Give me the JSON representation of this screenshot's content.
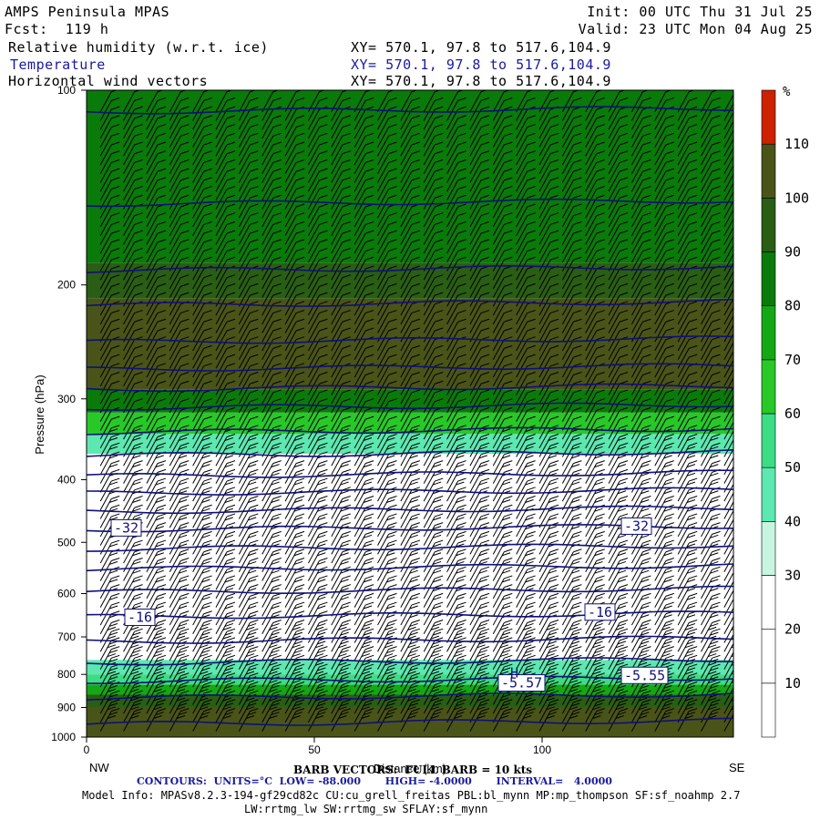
{
  "header": {
    "title": "AMPS Peninsula MPAS",
    "forecast": "Fcst:  119 h",
    "init": "Init: 00 UTC Thu 31 Jul 25",
    "valid": "Valid: 23 UTC Mon 04 Aug 25",
    "fields": [
      {
        "label": "Relative humidity (w.r.t. ice)",
        "xy": "XY= 570.1, 97.8 to 517.6,104.9"
      },
      {
        "label": "Temperature",
        "xy": "XY= 570.1, 97.8 to 517.6,104.9"
      },
      {
        "label": "Horizontal wind vectors",
        "xy": "XY= 570.1, 97.8 to 517.6,104.9"
      }
    ]
  },
  "chart_data": {
    "type": "heatmap",
    "ylabel": "Pressure (hPa)",
    "xlabel": "Distance (km)",
    "x_ticks": [
      0,
      50,
      100
    ],
    "xlim": [
      0,
      142
    ],
    "y_ticks": [
      100,
      200,
      300,
      400,
      500,
      600,
      700,
      800,
      900,
      1000
    ],
    "ylim": [
      100,
      1000
    ],
    "y_scale": "log",
    "left_end_label": "NW",
    "right_end_label": "SE",
    "colorbar": {
      "unit": "%",
      "levels": [
        10,
        20,
        30,
        40,
        50,
        60,
        70,
        80,
        90,
        100,
        110
      ],
      "colors": [
        "#ffffff",
        "#ffffff",
        "#ffffff",
        "#c8f5e0",
        "#5ce8b0",
        "#3ddc84",
        "#28c828",
        "#14a814",
        "#0a7a0a",
        "#2a5e14",
        "#4a5418",
        "#cc2200"
      ]
    },
    "rh_bands": [
      {
        "p_top": 100,
        "p_bot": 185,
        "level": 80
      },
      {
        "p_top": 185,
        "p_bot": 210,
        "level": 90
      },
      {
        "p_top": 210,
        "p_bot": 290,
        "level": 100
      },
      {
        "p_top": 290,
        "p_bot": 315,
        "level": 80
      },
      {
        "p_top": 315,
        "p_bot": 340,
        "level": 60
      },
      {
        "p_top": 340,
        "p_bot": 365,
        "level": 40
      },
      {
        "p_top": 365,
        "p_bot": 760,
        "level": 10
      },
      {
        "p_top": 760,
        "p_bot": 800,
        "level": 40
      },
      {
        "p_top": 800,
        "p_bot": 830,
        "level": 50
      },
      {
        "p_top": 830,
        "p_bot": 860,
        "level": 70
      },
      {
        "p_top": 860,
        "p_bot": 900,
        "level": 90
      },
      {
        "p_top": 900,
        "p_bot": 1000,
        "level": 100
      }
    ],
    "temperature_contours": {
      "units": "°C",
      "interval": 4,
      "low": -88,
      "high": -4,
      "pressures": [
        108,
        150,
        190,
        215,
        245,
        270,
        290,
        310,
        338,
        367,
        395,
        420,
        448,
        478,
        512,
        550,
        597,
        652,
        712,
        768,
        820,
        870,
        955
      ],
      "labels": [
        {
          "text": "-32",
          "x": 6,
          "p": 478
        },
        {
          "text": "-32",
          "x": 118,
          "p": 475
        },
        {
          "text": "-16",
          "x": 9,
          "p": 657
        },
        {
          "text": "-16",
          "x": 110,
          "p": 645
        },
        {
          "text": "-5.55",
          "x": 118,
          "p": 808
        },
        {
          "text": "-5.57",
          "x": 91,
          "p": 830
        }
      ]
    },
    "annotations": [
      {
        "text": "H",
        "x": 93,
        "p": 808
      }
    ],
    "wind_barbs": {
      "full_barb_kts": 10
    }
  },
  "footer": {
    "barb": "BARB VECTORS:  FULL BARB = 10 kts",
    "contours": "CONTOURS:  UNITS=°C  LOW= -88.000       HIGH= -4.0000       INTERVAL=   4.0000",
    "model_info_1": "Model Info: MPASv8.2.3-194-gf29cd82c CU:cu_grell_freitas PBL:bl_mynn MP:mp_thompson SF:sf_noahmp 2.7",
    "model_info_2": "LW:rrtmg_lw SW:rrtmg_sw SFLAY:sf_mynn"
  }
}
